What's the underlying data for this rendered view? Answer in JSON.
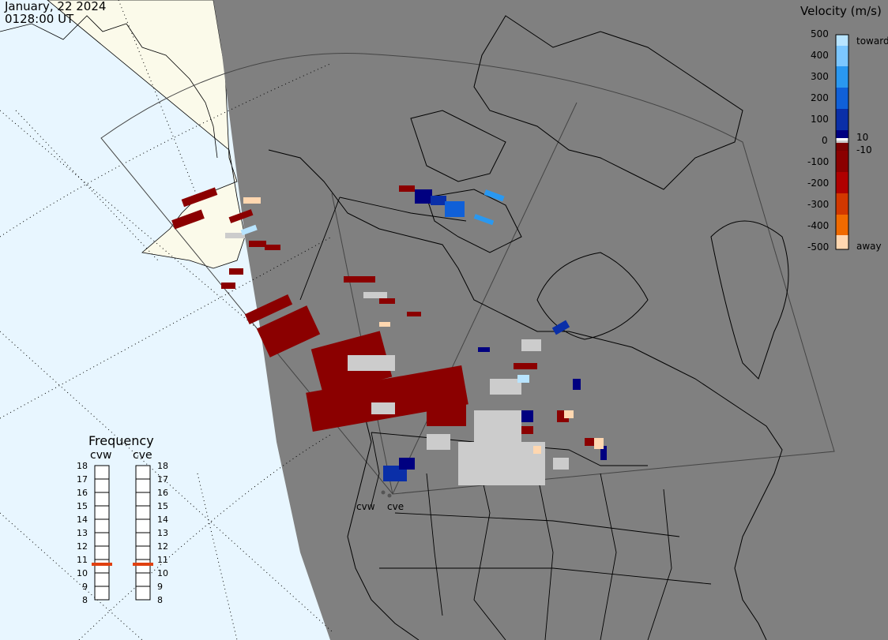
{
  "header": {
    "date": "January, 22 2024",
    "time": "0128:00 UT"
  },
  "velocity_scale": {
    "title": "Velocity (m/s)",
    "ticks": [
      "500",
      "400",
      "300",
      "200",
      "100",
      "0",
      "-100",
      "-200",
      "-300",
      "-400",
      "-500"
    ],
    "near_zero_pos": "10",
    "near_zero_neg": "-10",
    "toward_label": "toward",
    "away_label": "away",
    "colors": [
      "#b8e4ff",
      "#7cc7ff",
      "#2a98f0",
      "#1060d8",
      "#0a2fa8",
      "#000080",
      "#8b0000",
      "#b00000",
      "#d23800",
      "#f06a00",
      "#ff9a20",
      "#ffd7b0"
    ]
  },
  "frequency_panel": {
    "title": "Frequency",
    "radars": [
      {
        "name": "cvw",
        "current_mhz": 10.9
      },
      {
        "name": "cve",
        "current_mhz": 10.9
      }
    ],
    "levels": [
      "18",
      "17",
      "16",
      "15",
      "14",
      "13",
      "12",
      "11",
      "10",
      "9",
      "8"
    ],
    "marker_color": "#e04010"
  },
  "sites": [
    {
      "name": "cvw"
    },
    {
      "name": "cve"
    }
  ],
  "map_colors": {
    "night": "#808080",
    "ocean": "#e8f6ff",
    "land_day": "#fbfaea",
    "no_scatter": "#cccccc"
  }
}
